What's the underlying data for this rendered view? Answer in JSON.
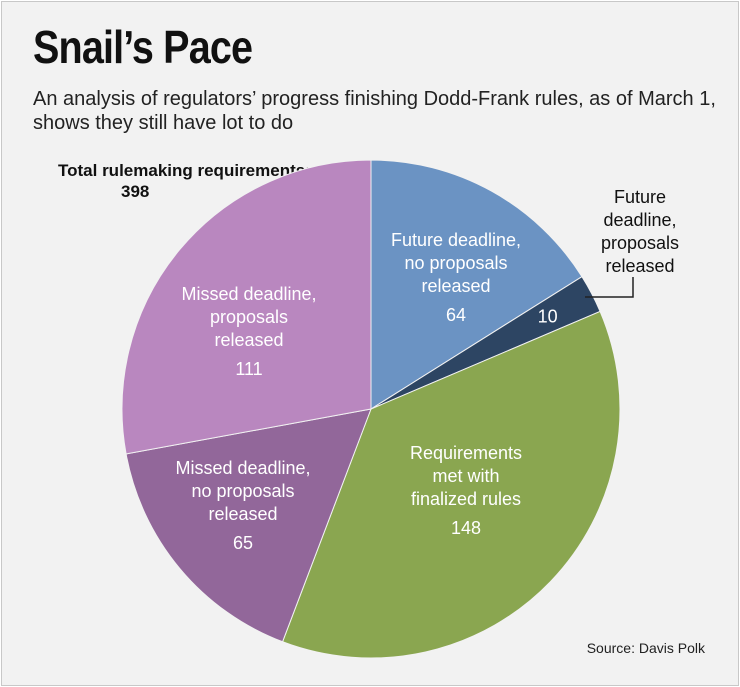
{
  "chart_data": {
    "type": "pie",
    "title": "Snail’s Pace",
    "subtitle": "An analysis of regulators’ progress finishing Dodd-Frank rules, as of March 1, shows they still have lot to do",
    "total_label": "Total rulemaking requirements:",
    "total_value": "398",
    "slices": [
      {
        "key": "future_no",
        "label_lines": [
          "Future deadline,",
          "no proposals",
          "released"
        ],
        "value": 64,
        "color": "#6b93c3"
      },
      {
        "key": "future_yes",
        "label_lines": [
          "Future",
          "deadline,",
          "proposals",
          "released"
        ],
        "value": 10,
        "color": "#2d4563"
      },
      {
        "key": "met",
        "label_lines": [
          "Requirements",
          "met with",
          "finalized rules"
        ],
        "value": 148,
        "color": "#8aa650"
      },
      {
        "key": "missed_no",
        "label_lines": [
          "Missed deadline,",
          "no proposals",
          "released"
        ],
        "value": 65,
        "color": "#92679a"
      },
      {
        "key": "missed_yes",
        "label_lines": [
          "Missed deadline,",
          "proposals",
          "released"
        ],
        "value": 111,
        "color": "#b987bf"
      }
    ],
    "source": "Source: Davis Polk"
  }
}
